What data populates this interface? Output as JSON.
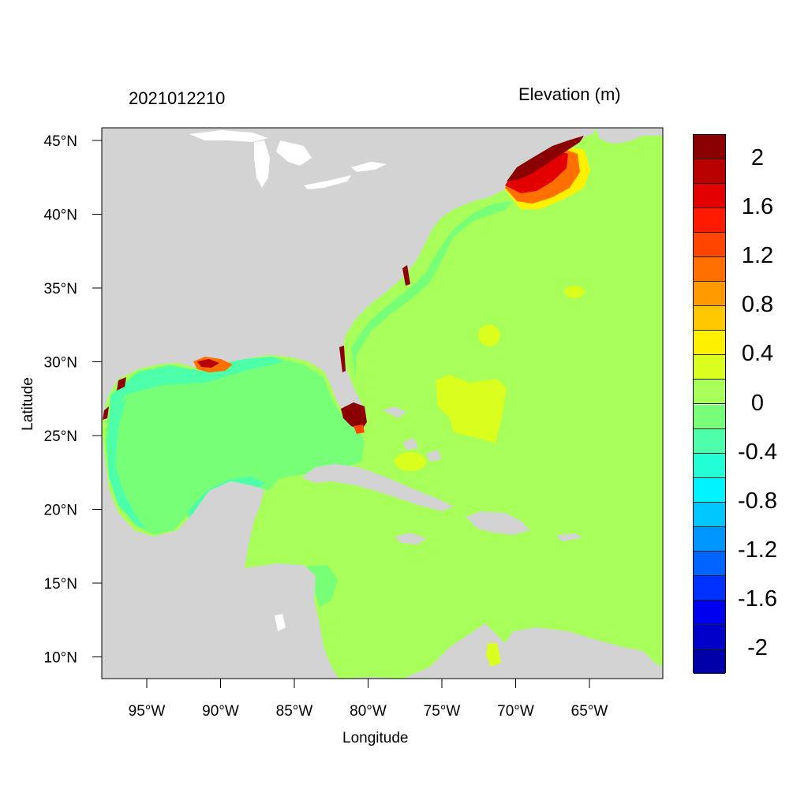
{
  "header": {
    "timestamp": "2021012210",
    "variable_label": "Elevation (m)"
  },
  "axes": {
    "xlabel": "Longitude",
    "ylabel": "Latitude",
    "xticks": [
      {
        "value": -95,
        "label": "95°W"
      },
      {
        "value": -90,
        "label": "90°W"
      },
      {
        "value": -85,
        "label": "85°W"
      },
      {
        "value": -80,
        "label": "80°W"
      },
      {
        "value": -75,
        "label": "75°W"
      },
      {
        "value": -70,
        "label": "70°W"
      },
      {
        "value": -65,
        "label": "65°W"
      }
    ],
    "yticks": [
      {
        "value": 45,
        "label": "45°N"
      },
      {
        "value": 40,
        "label": "40°N"
      },
      {
        "value": 35,
        "label": "35°N"
      },
      {
        "value": 30,
        "label": "30°N"
      },
      {
        "value": 25,
        "label": "25°N"
      },
      {
        "value": 20,
        "label": "20°N"
      },
      {
        "value": 15,
        "label": "15°N"
      },
      {
        "value": 10,
        "label": "10°N"
      }
    ]
  },
  "colorbar": {
    "colors": [
      "#8b0000",
      "#b80000",
      "#e30000",
      "#ff1a00",
      "#ff4500",
      "#ff7000",
      "#ff9a00",
      "#ffc800",
      "#fff000",
      "#daff1e",
      "#a8ff5a",
      "#78ff78",
      "#4cffa8",
      "#22ffd6",
      "#00f4ff",
      "#00c8ff",
      "#0096ff",
      "#0064ff",
      "#0032ff",
      "#0000f0",
      "#0000c8",
      "#0000a8"
    ],
    "labels": [
      "2",
      "1.6",
      "1.2",
      "0.8",
      "0.4",
      "0",
      "-0.4",
      "-0.8",
      "-1.2",
      "-1.6",
      "-2"
    ]
  },
  "colors": {
    "land": "#d3d3d3",
    "ocean_neutral": "#a8ff5a",
    "ocean_gulf": "#78ff78",
    "ocean_shelf": "#4cffa8",
    "surge_high": "#8b0000",
    "surge_mid": "#ff4500",
    "surge_low": "#fff000",
    "lake": "#ffffff"
  }
}
